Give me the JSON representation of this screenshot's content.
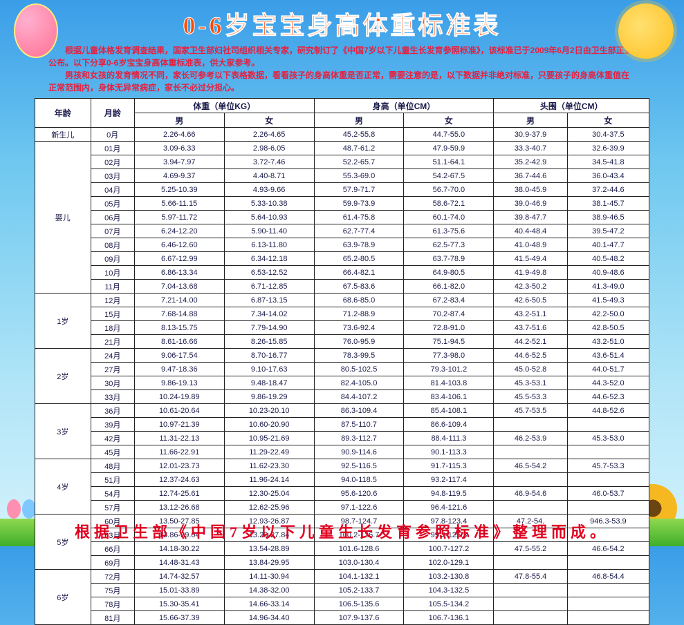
{
  "title": "0-6岁宝宝身高体重标准表",
  "intro": "根据儿童体格发育调查结果，国家卫生部妇社司组织相关专家，研究制订了《中国7岁以下儿童生长发育参照标准》，该标准已于2009年6月2日由卫生部正式公布。以下分享0-6岁宝宝身高体重标准表，供大家参考。\n男孩和女孩的发育情况不同，家长可参考以下表格数据，看看孩子的身高体重是否正常，需要注意的是，以下数据并非绝对标准，只要孩子的身高体重值在正常范围内，身体无异常病症，家长不必过分担心。",
  "footer": "根据卫生部《中国7岁以下儿童生长发育参照标准》整理而成。",
  "headers": {
    "age": "年龄",
    "month": "月龄",
    "weight": "体重（单位KG）",
    "height": "身高（单位CM）",
    "head": "头围（单位CM）",
    "male": "男",
    "female": "女"
  },
  "groups": [
    {
      "age": "新生儿",
      "rows": [
        {
          "m": "0月",
          "wm": "2.26-4.66",
          "wf": "2.26-4.65",
          "hm": "45.2-55.8",
          "hf": "44.7-55.0",
          "cm": "30.9-37.9",
          "cf": "30.4-37.5"
        }
      ]
    },
    {
      "age": "婴儿",
      "rows": [
        {
          "m": "01月",
          "wm": "3.09-6.33",
          "wf": "2.98-6.05",
          "hm": "48.7-61.2",
          "hf": "47.9-59.9",
          "cm": "33.3-40.7",
          "cf": "32.6-39.9"
        },
        {
          "m": "02月",
          "wm": "3.94-7.97",
          "wf": "3.72-7.46",
          "hm": "52.2-65.7",
          "hf": "51.1-64.1",
          "cm": "35.2-42.9",
          "cf": "34.5-41.8"
        },
        {
          "m": "03月",
          "wm": "4.69-9.37",
          "wf": "4.40-8.71",
          "hm": "55.3-69.0",
          "hf": "54.2-67.5",
          "cm": "36.7-44.6",
          "cf": "36.0-43.4"
        },
        {
          "m": "04月",
          "wm": "5.25-10.39",
          "wf": "4.93-9.66",
          "hm": "57.9-71.7",
          "hf": "56.7-70.0",
          "cm": "38.0-45.9",
          "cf": "37.2-44.6"
        },
        {
          "m": "05月",
          "wm": "5.66-11.15",
          "wf": "5.33-10.38",
          "hm": "59.9-73.9",
          "hf": "58.6-72.1",
          "cm": "39.0-46.9",
          "cf": "38.1-45.7"
        },
        {
          "m": "06月",
          "wm": "5.97-11.72",
          "wf": "5.64-10.93",
          "hm": "61.4-75.8",
          "hf": "60.1-74.0",
          "cm": "39.8-47.7",
          "cf": "38.9-46.5"
        },
        {
          "m": "07月",
          "wm": "6.24-12.20",
          "wf": "5.90-11.40",
          "hm": "62.7-77.4",
          "hf": "61.3-75.6",
          "cm": "40.4-48.4",
          "cf": "39.5-47.2"
        },
        {
          "m": "08月",
          "wm": "6.46-12.60",
          "wf": "6.13-11.80",
          "hm": "63.9-78.9",
          "hf": "62.5-77.3",
          "cm": "41.0-48.9",
          "cf": "40.1-47.7"
        },
        {
          "m": "09月",
          "wm": "6.67-12.99",
          "wf": "6.34-12.18",
          "hm": "65.2-80.5",
          "hf": "63.7-78.9",
          "cm": "41.5-49.4",
          "cf": "40.5-48.2"
        },
        {
          "m": "10月",
          "wm": "6.86-13.34",
          "wf": "6.53-12.52",
          "hm": "66.4-82.1",
          "hf": "64.9-80.5",
          "cm": "41.9-49.8",
          "cf": "40.9-48.6"
        },
        {
          "m": "11月",
          "wm": "7.04-13.68",
          "wf": "6.71-12.85",
          "hm": "67.5-83.6",
          "hf": "66.1-82.0",
          "cm": "42.3-50.2",
          "cf": "41.3-49.0"
        }
      ]
    },
    {
      "age": "1岁",
      "rows": [
        {
          "m": "12月",
          "wm": "7.21-14.00",
          "wf": "6.87-13.15",
          "hm": "68.6-85.0",
          "hf": "67.2-83.4",
          "cm": "42.6-50.5",
          "cf": "41.5-49.3"
        },
        {
          "m": "15月",
          "wm": "7.68-14.88",
          "wf": "7.34-14.02",
          "hm": "71.2-88.9",
          "hf": "70.2-87.4",
          "cm": "43.2-51.1",
          "cf": "42.2-50.0"
        },
        {
          "m": "18月",
          "wm": "8.13-15.75",
          "wf": "7.79-14.90",
          "hm": "73.6-92.4",
          "hf": "72.8-91.0",
          "cm": "43.7-51.6",
          "cf": "42.8-50.5"
        },
        {
          "m": "21月",
          "wm": "8.61-16.66",
          "wf": "8.26-15.85",
          "hm": "76.0-95.9",
          "hf": "75.1-94.5",
          "cm": "44.2-52.1",
          "cf": "43.2-51.0"
        }
      ]
    },
    {
      "age": "2岁",
      "rows": [
        {
          "m": "24月",
          "wm": "9.06-17.54",
          "wf": "8.70-16.77",
          "hm": "78.3-99.5",
          "hf": "77.3-98.0",
          "cm": "44.6-52.5",
          "cf": "43.6-51.4"
        },
        {
          "m": "27月",
          "wm": "9.47-18.36",
          "wf": "9.10-17.63",
          "hm": "80.5-102.5",
          "hf": "79.3-101.2",
          "cm": "45.0-52.8",
          "cf": "44.0-51.7"
        },
        {
          "m": "30月",
          "wm": "9.86-19.13",
          "wf": "9.48-18.47",
          "hm": "82.4-105.0",
          "hf": "81.4-103.8",
          "cm": "45.3-53.1",
          "cf": "44.3-52.0"
        },
        {
          "m": "33月",
          "wm": "10.24-19.89",
          "wf": "9.86-19.29",
          "hm": "84.4-107.2",
          "hf": "83.4-106.1",
          "cm": "45.5-53.3",
          "cf": "44.6-52.3"
        }
      ]
    },
    {
      "age": "3岁",
      "rows": [
        {
          "m": "36月",
          "wm": "10.61-20.64",
          "wf": "10.23-20.10",
          "hm": "86.3-109.4",
          "hf": "85.4-108.1",
          "cm": "45.7-53.5",
          "cf": "44.8-52.6"
        },
        {
          "m": "39月",
          "wm": "10.97-21.39",
          "wf": "10.60-20.90",
          "hm": "87.5-110.7",
          "hf": "86.6-109.4",
          "cm": "",
          "cf": ""
        },
        {
          "m": "42月",
          "wm": "11.31-22.13",
          "wf": "10.95-21.69",
          "hm": "89.3-112.7",
          "hf": "88.4-111.3",
          "cm": "46.2-53.9",
          "cf": "45.3-53.0"
        },
        {
          "m": "45月",
          "wm": "11.66-22.91",
          "wf": "11.29-22.49",
          "hm": "90.9-114.6",
          "hf": "90.1-113.3",
          "cm": "",
          "cf": ""
        }
      ]
    },
    {
      "age": "4岁",
      "rows": [
        {
          "m": "48月",
          "wm": "12.01-23.73",
          "wf": "11.62-23.30",
          "hm": "92.5-116.5",
          "hf": "91.7-115.3",
          "cm": "46.5-54.2",
          "cf": "45.7-53.3"
        },
        {
          "m": "51月",
          "wm": "12.37-24.63",
          "wf": "11.96-24.14",
          "hm": "94.0-118.5",
          "hf": "93.2-117.4",
          "cm": "",
          "cf": ""
        },
        {
          "m": "54月",
          "wm": "12.74-25.61",
          "wf": "12.30-25.04",
          "hm": "95.6-120.6",
          "hf": "94.8-119.5",
          "cm": "46.9-54.6",
          "cf": "46.0-53.7"
        },
        {
          "m": "57月",
          "wm": "13.12-26.68",
          "wf": "12.62-25.96",
          "hm": "97.1-122.6",
          "hf": "96.4-121.6",
          "cm": "",
          "cf": ""
        }
      ]
    },
    {
      "age": "5岁",
      "rows": [
        {
          "m": "60月",
          "wm": "13.50-27.85",
          "wf": "12.93-26.87",
          "hm": "98.7-124.7",
          "hf": "97.8-123.4",
          "cm": "47.2-54.",
          "cf": "946.3-53.9"
        },
        {
          "m": "63月",
          "wm": "13.86-29.04",
          "wf": "13.23-27.84",
          "hm": "100.2-126.7",
          "hf": "99.3-125.3",
          "cm": "",
          "cf": ""
        },
        {
          "m": "66月",
          "wm": "14.18-30.22",
          "wf": "13.54-28.89",
          "hm": "101.6-128.6",
          "hf": "100.7-127.2",
          "cm": "47.5-55.2",
          "cf": "46.6-54.2"
        },
        {
          "m": "69月",
          "wm": "14.48-31.43",
          "wf": "13.84-29.95",
          "hm": "103.0-130.4",
          "hf": "102.0-129.1",
          "cm": "",
          "cf": ""
        }
      ]
    },
    {
      "age": "6岁",
      "rows": [
        {
          "m": "72月",
          "wm": "14.74-32.57",
          "wf": "14.11-30.94",
          "hm": "104.1-132.1",
          "hf": "103.2-130.8",
          "cm": "47.8-55.4",
          "cf": "46.8-54.4"
        },
        {
          "m": "75月",
          "wm": "15.01-33.89",
          "wf": "14.38-32.00",
          "hm": "105.2-133.7",
          "hf": "104.3-132.5",
          "cm": "",
          "cf": ""
        },
        {
          "m": "78月",
          "wm": "15.30-35.41",
          "wf": "14.66-33.14",
          "hm": "106.5-135.6",
          "hf": "105.5-134.2",
          "cm": "",
          "cf": ""
        },
        {
          "m": "81月",
          "wm": "15.66-37.39",
          "wf": "14.96-34.40",
          "hm": "107.9-137.6",
          "hf": "106.7-136.1",
          "cm": "",
          "cf": ""
        }
      ]
    }
  ]
}
